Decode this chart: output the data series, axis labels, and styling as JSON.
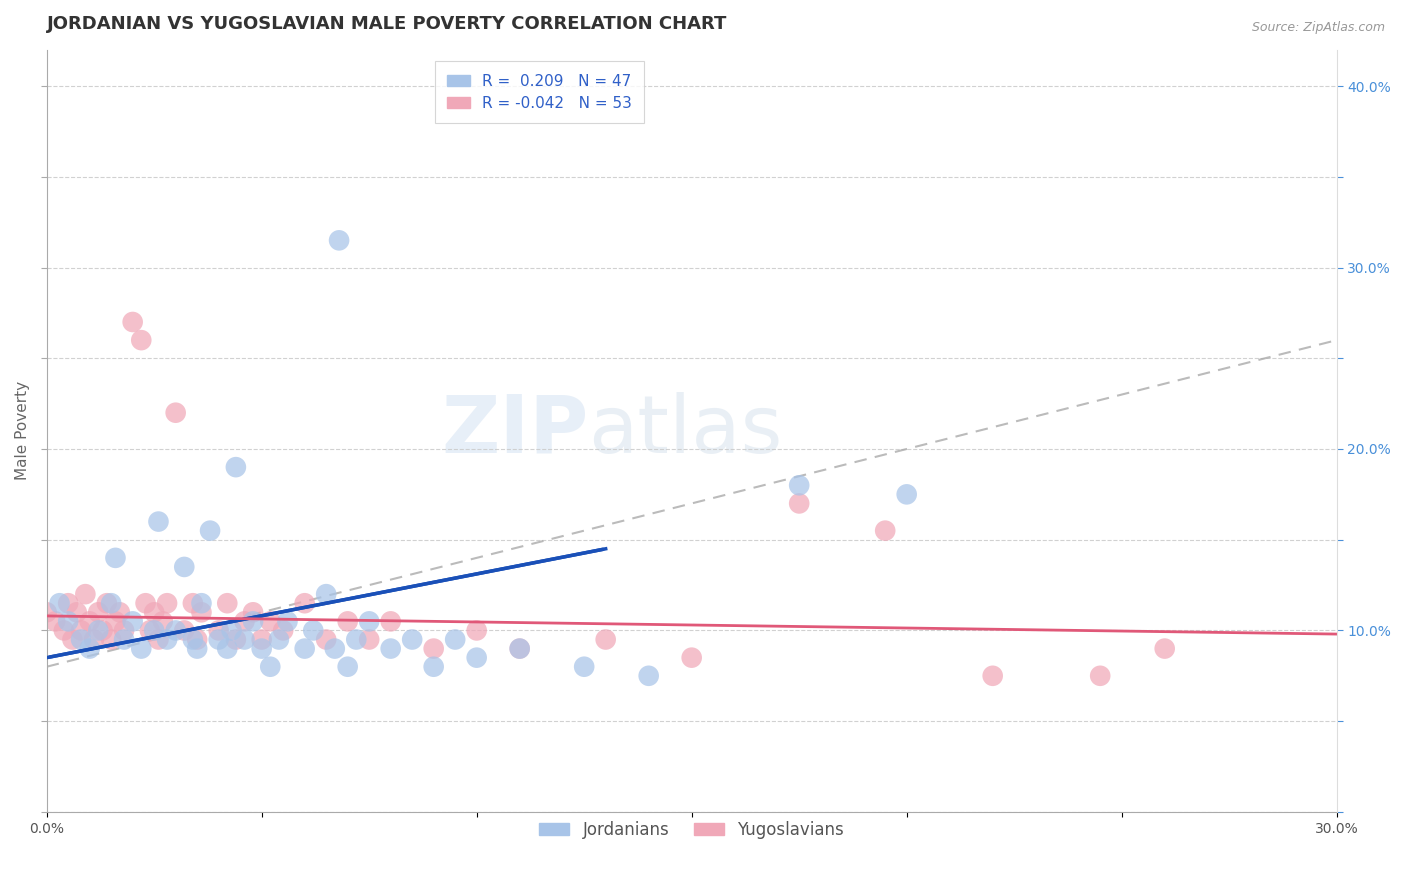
{
  "title": "JORDANIAN VS YUGOSLAVIAN MALE POVERTY CORRELATION CHART",
  "source": "Source: ZipAtlas.com",
  "ylabel": "Male Poverty",
  "xlim": [
    0.0,
    0.3
  ],
  "ylim": [
    0.0,
    0.42
  ],
  "xticks": [
    0.0,
    0.05,
    0.1,
    0.15,
    0.2,
    0.25,
    0.3
  ],
  "xtick_labels": [
    "0.0%",
    "",
    "",
    "",
    "",
    "",
    "30.0%"
  ],
  "yticks": [
    0.0,
    0.05,
    0.1,
    0.15,
    0.2,
    0.25,
    0.3,
    0.35,
    0.4
  ],
  "ytick_labels_right": [
    "",
    "",
    "10.0%",
    "",
    "20.0%",
    "",
    "30.0%",
    "",
    "40.0%"
  ],
  "jordan_color": "#a8c4e8",
  "yugo_color": "#f0a8b8",
  "jordan_line_color": "#1a50b8",
  "yugo_line_color": "#e05878",
  "trend_line_color": "#aaaaaa",
  "background_color": "#ffffff",
  "grid_color": "#cccccc",
  "title_color": "#333333",
  "source_color": "#999999",
  "jordan_R": 0.209,
  "yugo_R": -0.042,
  "jordan_N": 47,
  "yugo_N": 53,
  "watermark_zip": "ZIP",
  "watermark_atlas": "atlas",
  "legend_text_color": "#3060c8",
  "title_fontsize": 13,
  "axis_label_fontsize": 11,
  "tick_fontsize": 10,
  "legend_fontsize": 11,
  "jordan_scatter": [
    [
      0.003,
      0.115
    ],
    [
      0.005,
      0.105
    ],
    [
      0.008,
      0.095
    ],
    [
      0.01,
      0.09
    ],
    [
      0.012,
      0.1
    ],
    [
      0.015,
      0.115
    ],
    [
      0.016,
      0.14
    ],
    [
      0.018,
      0.095
    ],
    [
      0.02,
      0.105
    ],
    [
      0.022,
      0.09
    ],
    [
      0.025,
      0.1
    ],
    [
      0.026,
      0.16
    ],
    [
      0.028,
      0.095
    ],
    [
      0.03,
      0.1
    ],
    [
      0.032,
      0.135
    ],
    [
      0.034,
      0.095
    ],
    [
      0.035,
      0.09
    ],
    [
      0.036,
      0.115
    ],
    [
      0.038,
      0.155
    ],
    [
      0.04,
      0.095
    ],
    [
      0.042,
      0.09
    ],
    [
      0.043,
      0.1
    ],
    [
      0.044,
      0.19
    ],
    [
      0.046,
      0.095
    ],
    [
      0.048,
      0.105
    ],
    [
      0.05,
      0.09
    ],
    [
      0.052,
      0.08
    ],
    [
      0.054,
      0.095
    ],
    [
      0.056,
      0.105
    ],
    [
      0.06,
      0.09
    ],
    [
      0.062,
      0.1
    ],
    [
      0.065,
      0.12
    ],
    [
      0.067,
      0.09
    ],
    [
      0.068,
      0.315
    ],
    [
      0.07,
      0.08
    ],
    [
      0.072,
      0.095
    ],
    [
      0.075,
      0.105
    ],
    [
      0.08,
      0.09
    ],
    [
      0.085,
      0.095
    ],
    [
      0.09,
      0.08
    ],
    [
      0.095,
      0.095
    ],
    [
      0.1,
      0.085
    ],
    [
      0.11,
      0.09
    ],
    [
      0.125,
      0.08
    ],
    [
      0.14,
      0.075
    ],
    [
      0.175,
      0.18
    ],
    [
      0.2,
      0.175
    ]
  ],
  "yugo_scatter": [
    [
      0.0,
      0.11
    ],
    [
      0.002,
      0.105
    ],
    [
      0.004,
      0.1
    ],
    [
      0.005,
      0.115
    ],
    [
      0.006,
      0.095
    ],
    [
      0.007,
      0.11
    ],
    [
      0.008,
      0.1
    ],
    [
      0.009,
      0.12
    ],
    [
      0.01,
      0.105
    ],
    [
      0.011,
      0.095
    ],
    [
      0.012,
      0.11
    ],
    [
      0.013,
      0.1
    ],
    [
      0.014,
      0.115
    ],
    [
      0.015,
      0.095
    ],
    [
      0.016,
      0.105
    ],
    [
      0.017,
      0.11
    ],
    [
      0.018,
      0.1
    ],
    [
      0.02,
      0.27
    ],
    [
      0.022,
      0.26
    ],
    [
      0.023,
      0.115
    ],
    [
      0.024,
      0.1
    ],
    [
      0.025,
      0.11
    ],
    [
      0.026,
      0.095
    ],
    [
      0.027,
      0.105
    ],
    [
      0.028,
      0.115
    ],
    [
      0.03,
      0.22
    ],
    [
      0.032,
      0.1
    ],
    [
      0.034,
      0.115
    ],
    [
      0.035,
      0.095
    ],
    [
      0.036,
      0.11
    ],
    [
      0.04,
      0.1
    ],
    [
      0.042,
      0.115
    ],
    [
      0.044,
      0.095
    ],
    [
      0.046,
      0.105
    ],
    [
      0.048,
      0.11
    ],
    [
      0.05,
      0.095
    ],
    [
      0.052,
      0.105
    ],
    [
      0.055,
      0.1
    ],
    [
      0.06,
      0.115
    ],
    [
      0.065,
      0.095
    ],
    [
      0.07,
      0.105
    ],
    [
      0.075,
      0.095
    ],
    [
      0.08,
      0.105
    ],
    [
      0.09,
      0.09
    ],
    [
      0.1,
      0.1
    ],
    [
      0.11,
      0.09
    ],
    [
      0.13,
      0.095
    ],
    [
      0.15,
      0.085
    ],
    [
      0.175,
      0.17
    ],
    [
      0.195,
      0.155
    ],
    [
      0.22,
      0.075
    ],
    [
      0.245,
      0.075
    ],
    [
      0.26,
      0.09
    ]
  ],
  "jordan_line": [
    [
      0.0,
      0.085
    ],
    [
      0.13,
      0.145
    ]
  ],
  "yugo_line": [
    [
      0.0,
      0.108
    ],
    [
      0.3,
      0.098
    ]
  ],
  "dash_line": [
    [
      0.0,
      0.08
    ],
    [
      0.3,
      0.26
    ]
  ]
}
